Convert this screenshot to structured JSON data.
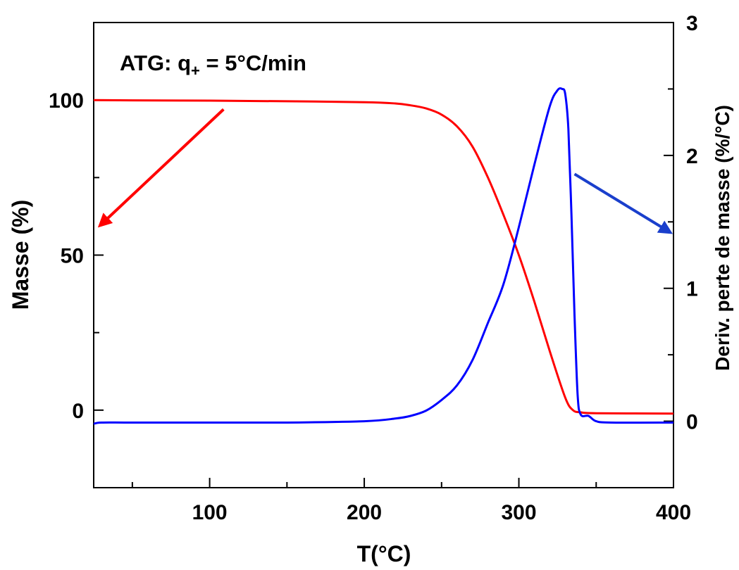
{
  "chart_data": {
    "type": "line",
    "annotation": {
      "main": "ATG: q",
      "sub": "+",
      "rest": " = 5°C/min"
    },
    "xlabel": "T(°C)",
    "ylabel_left": "Masse (%)",
    "ylabel_right": "Deriv. perte de masse (%/°C)",
    "xlim": [
      25,
      400
    ],
    "ylim_left": [
      -25,
      125
    ],
    "ylim_right": [
      -0.5,
      3
    ],
    "x_ticks": [
      100,
      200,
      300,
      400
    ],
    "y_ticks_left": [
      0,
      50,
      100
    ],
    "y_ticks_right": [
      0,
      1,
      2,
      3
    ],
    "grid": false,
    "series": [
      {
        "axis": "left",
        "color": "#ff0000",
        "x": [
          25,
          50,
          100,
          150,
          200,
          220,
          230,
          240,
          250,
          260,
          270,
          280,
          290,
          300,
          310,
          320,
          330,
          335,
          340,
          350,
          400
        ],
        "y": [
          100,
          99.9,
          99.8,
          99.6,
          99.3,
          98.9,
          98.3,
          97.3,
          95.3,
          91.5,
          85,
          75,
          63,
          50,
          35,
          19,
          4,
          0,
          -0.7,
          -1,
          -1.1
        ]
      },
      {
        "axis": "right",
        "color": "#0000ff",
        "x": [
          25,
          30,
          50,
          100,
          150,
          200,
          220,
          230,
          240,
          250,
          260,
          270,
          280,
          290,
          300,
          310,
          320,
          325,
          328,
          330,
          332,
          334,
          336,
          338,
          340,
          345,
          350,
          360,
          400
        ],
        "y": [
          -0.02,
          -0.01,
          -0.01,
          -0.01,
          -0.01,
          0.0,
          0.02,
          0.04,
          0.08,
          0.16,
          0.27,
          0.46,
          0.74,
          1.03,
          1.46,
          1.93,
          2.37,
          2.49,
          2.5,
          2.46,
          2.2,
          1.55,
          0.8,
          0.2,
          0.05,
          0.04,
          0.0,
          -0.01,
          -0.01
        ]
      }
    ],
    "arrows": [
      {
        "color": "#ff0000",
        "from": [
          109,
          97
        ],
        "to": [
          29,
          59.5
        ],
        "axis": "left"
      },
      {
        "color": "#1a3fcc",
        "from": [
          336,
          1.86
        ],
        "to": [
          398,
          1.42
        ],
        "axis": "right"
      }
    ]
  }
}
